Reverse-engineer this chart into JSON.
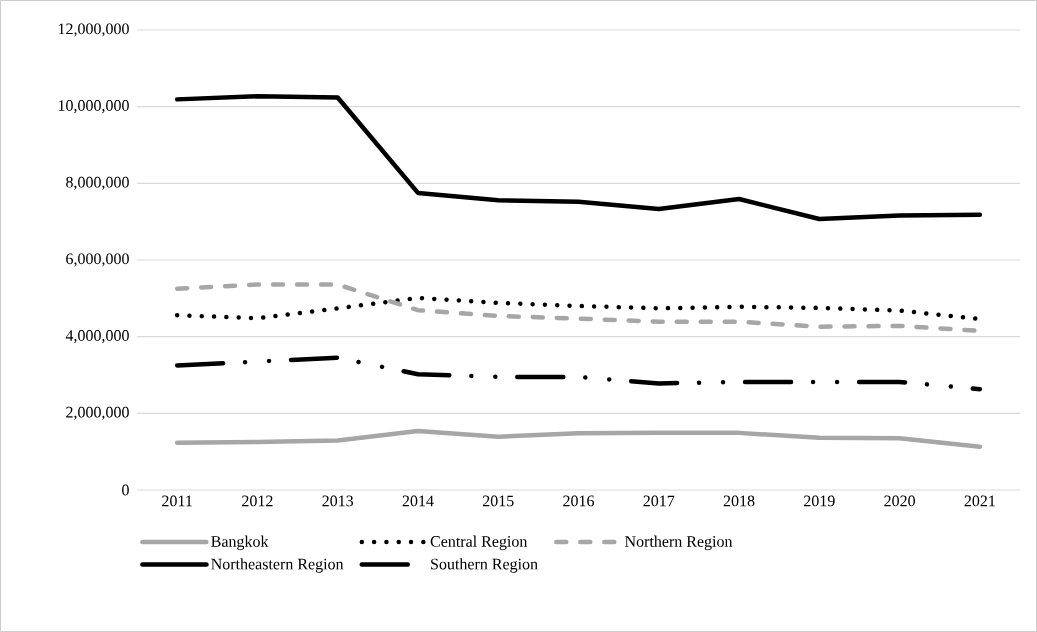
{
  "chart_data": {
    "type": "line",
    "categories": [
      "2011",
      "2012",
      "2013",
      "2014",
      "2015",
      "2016",
      "2017",
      "2018",
      "2019",
      "2020",
      "2021"
    ],
    "series": [
      {
        "name": "Bangkok",
        "color": "#a6a6a6",
        "line_style": "solid",
        "values": [
          1230000,
          1250000,
          1290000,
          1540000,
          1390000,
          1480000,
          1490000,
          1490000,
          1360000,
          1350000,
          1130000
        ]
      },
      {
        "name": "Central Region",
        "color": "#000000",
        "line_style": "dotted",
        "values": [
          4560000,
          4480000,
          4740000,
          5010000,
          4880000,
          4800000,
          4740000,
          4780000,
          4750000,
          4680000,
          4460000
        ]
      },
      {
        "name": "Northern Region",
        "color": "#a6a6a6",
        "line_style": "dashed",
        "values": [
          5250000,
          5360000,
          5360000,
          4690000,
          4540000,
          4470000,
          4390000,
          4390000,
          4260000,
          4280000,
          4150000
        ]
      },
      {
        "name": "Northeastern Region",
        "color": "#000000",
        "line_style": "solid",
        "values": [
          10190000,
          10270000,
          10240000,
          7750000,
          7560000,
          7520000,
          7330000,
          7590000,
          7070000,
          7160000,
          7180000
        ]
      },
      {
        "name": "Southern Region",
        "color": "#000000",
        "line_style": "dashdotdot",
        "values": [
          3250000,
          3350000,
          3450000,
          3020000,
          2950000,
          2950000,
          2780000,
          2820000,
          2820000,
          2820000,
          2630000
        ]
      }
    ],
    "ylim": [
      0,
      12000000
    ],
    "yticks": [
      {
        "value": 0,
        "label": "0"
      },
      {
        "value": 2000000,
        "label": "2,000,000"
      },
      {
        "value": 4000000,
        "label": "4,000,000"
      },
      {
        "value": 6000000,
        "label": "6,000,000"
      },
      {
        "value": 8000000,
        "label": "8,000,000"
      },
      {
        "value": 10000000,
        "label": "10,000,000"
      },
      {
        "value": 12000000,
        "label": "12,000,000"
      }
    ],
    "grid": "y",
    "legend": "bottom",
    "marker": "none"
  }
}
